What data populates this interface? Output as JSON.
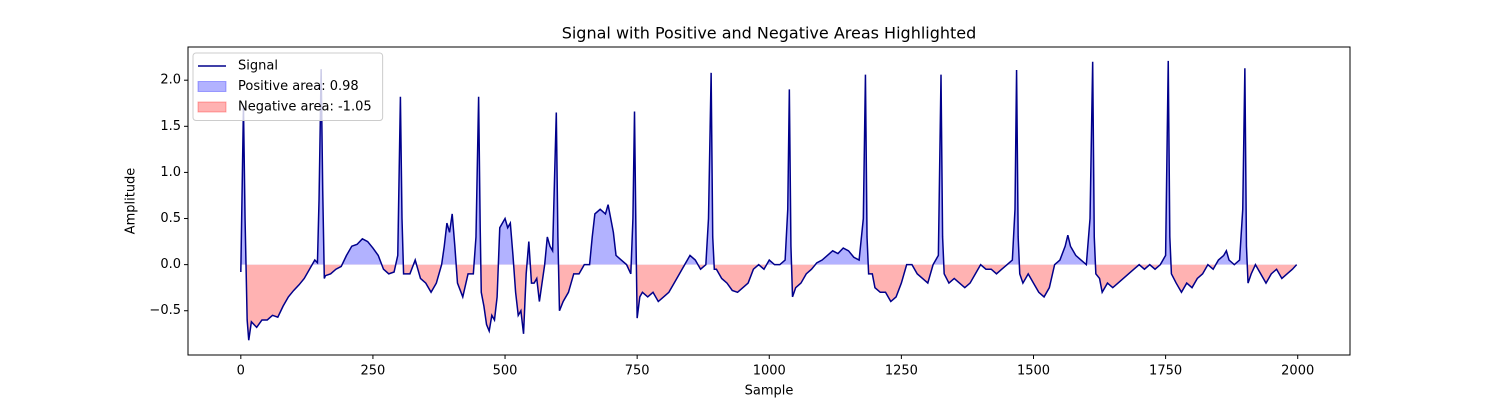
{
  "chart_data": {
    "type": "line",
    "title": "Signal with Positive and Negative Areas Highlighted",
    "x_label": "Sample",
    "y_label": "Amplitude",
    "x": [
      0,
      3,
      5,
      8,
      12,
      15,
      20,
      30,
      40,
      50,
      60,
      70,
      80,
      90,
      100,
      110,
      120,
      130,
      140,
      145,
      148,
      152,
      155,
      158,
      160,
      170,
      180,
      190,
      200,
      210,
      220,
      230,
      240,
      250,
      260,
      270,
      280,
      290,
      297,
      302,
      305,
      308,
      320,
      330,
      340,
      350,
      360,
      370,
      380,
      385,
      390,
      395,
      400,
      405,
      410,
      420,
      430,
      440,
      445,
      450,
      453,
      455,
      460,
      465,
      470,
      475,
      480,
      485,
      490,
      495,
      500,
      505,
      510,
      515,
      520,
      525,
      530,
      535,
      540,
      545,
      550,
      555,
      560,
      565,
      570,
      575,
      580,
      585,
      590,
      597,
      600,
      603,
      610,
      620,
      630,
      640,
      650,
      660,
      665,
      670,
      680,
      690,
      695,
      700,
      705,
      710,
      720,
      730,
      738,
      742,
      745,
      748,
      750,
      755,
      760,
      770,
      780,
      790,
      800,
      810,
      820,
      830,
      840,
      850,
      860,
      870,
      880,
      885,
      890,
      893,
      896,
      900,
      910,
      920,
      930,
      940,
      950,
      960,
      970,
      980,
      990,
      1000,
      1010,
      1020,
      1030,
      1035,
      1038,
      1041,
      1044,
      1050,
      1060,
      1070,
      1080,
      1090,
      1100,
      1110,
      1120,
      1130,
      1140,
      1150,
      1160,
      1170,
      1178,
      1182,
      1185,
      1188,
      1195,
      1200,
      1210,
      1220,
      1230,
      1240,
      1250,
      1260,
      1270,
      1280,
      1290,
      1300,
      1310,
      1320,
      1325,
      1328,
      1331,
      1340,
      1350,
      1360,
      1370,
      1380,
      1390,
      1400,
      1410,
      1420,
      1430,
      1440,
      1450,
      1460,
      1465,
      1468,
      1471,
      1474,
      1480,
      1490,
      1500,
      1510,
      1520,
      1530,
      1540,
      1550,
      1560,
      1565,
      1570,
      1580,
      1590,
      1600,
      1607,
      1612,
      1615,
      1618,
      1625,
      1630,
      1640,
      1650,
      1660,
      1670,
      1680,
      1690,
      1700,
      1710,
      1720,
      1730,
      1740,
      1750,
      1755,
      1758,
      1761,
      1770,
      1780,
      1790,
      1800,
      1810,
      1820,
      1830,
      1840,
      1850,
      1860,
      1865,
      1870,
      1880,
      1890,
      1896,
      1900,
      1903,
      1906,
      1912,
      1920,
      1930,
      1940,
      1950,
      1960,
      1970,
      1980,
      1990,
      1998
    ],
    "series": [
      {
        "name": "Signal",
        "color": "#00008b",
        "values": [
          -0.08,
          1.0,
          1.72,
          0.5,
          -0.6,
          -0.82,
          -0.62,
          -0.68,
          -0.6,
          -0.6,
          -0.55,
          -0.57,
          -0.45,
          -0.35,
          -0.28,
          -0.22,
          -0.15,
          -0.05,
          0.05,
          0.02,
          0.7,
          2.12,
          0.8,
          -0.15,
          -0.12,
          -0.1,
          -0.05,
          -0.02,
          0.1,
          0.2,
          0.22,
          0.28,
          0.25,
          0.18,
          0.1,
          -0.05,
          -0.1,
          -0.08,
          0.1,
          1.82,
          0.5,
          -0.1,
          -0.1,
          0.05,
          -0.15,
          -0.2,
          -0.3,
          -0.2,
          0.0,
          0.2,
          0.45,
          0.35,
          0.55,
          0.2,
          -0.2,
          -0.35,
          -0.1,
          -0.1,
          0.3,
          1.82,
          0.4,
          -0.3,
          -0.45,
          -0.65,
          -0.72,
          -0.55,
          -0.6,
          -0.35,
          0.4,
          0.45,
          0.5,
          0.4,
          0.45,
          0.1,
          -0.3,
          -0.55,
          -0.5,
          -0.75,
          -0.1,
          0.25,
          -0.2,
          -0.2,
          -0.15,
          -0.4,
          -0.2,
          0.0,
          0.3,
          0.2,
          0.15,
          1.65,
          0.3,
          -0.5,
          -0.4,
          -0.3,
          -0.1,
          -0.1,
          0.0,
          0.0,
          0.3,
          0.55,
          0.6,
          0.55,
          0.65,
          0.5,
          0.35,
          0.1,
          0.05,
          0.0,
          -0.1,
          0.5,
          1.66,
          0.2,
          -0.58,
          -0.35,
          -0.3,
          -0.35,
          -0.3,
          -0.4,
          -0.35,
          -0.3,
          -0.2,
          -0.1,
          0.0,
          0.1,
          0.05,
          -0.05,
          0.0,
          0.5,
          2.08,
          0.3,
          -0.05,
          -0.05,
          -0.15,
          -0.2,
          -0.28,
          -0.3,
          -0.25,
          -0.2,
          -0.05,
          0.0,
          -0.05,
          0.05,
          0.0,
          0.0,
          0.05,
          0.6,
          1.9,
          0.2,
          -0.35,
          -0.25,
          -0.2,
          -0.1,
          -0.05,
          0.02,
          0.05,
          0.1,
          0.15,
          0.12,
          0.18,
          0.15,
          0.08,
          0.05,
          0.5,
          2.06,
          0.3,
          -0.1,
          -0.1,
          -0.25,
          -0.3,
          -0.3,
          -0.4,
          -0.35,
          -0.2,
          0.0,
          0.0,
          -0.1,
          -0.15,
          -0.2,
          0.0,
          0.1,
          2.06,
          0.3,
          -0.1,
          -0.2,
          -0.15,
          -0.2,
          -0.25,
          -0.2,
          -0.1,
          0.0,
          -0.05,
          -0.05,
          -0.1,
          -0.05,
          0.0,
          0.05,
          0.6,
          2.11,
          0.3,
          -0.1,
          -0.2,
          -0.1,
          -0.2,
          -0.3,
          -0.35,
          -0.25,
          0.0,
          0.05,
          0.2,
          0.32,
          0.2,
          0.1,
          0.05,
          0.0,
          0.5,
          2.2,
          0.3,
          -0.1,
          -0.15,
          -0.3,
          -0.2,
          -0.25,
          -0.2,
          -0.15,
          -0.1,
          -0.05,
          0.0,
          -0.05,
          0.0,
          -0.05,
          0.0,
          0.1,
          2.21,
          0.3,
          -0.1,
          -0.2,
          -0.3,
          -0.2,
          -0.25,
          -0.15,
          -0.1,
          0.0,
          -0.05,
          0.05,
          0.1,
          0.15,
          0.05,
          0.0,
          0.05,
          0.6,
          2.13,
          0.2,
          -0.2,
          -0.1,
          0.0,
          -0.1,
          -0.2,
          -0.1,
          -0.05,
          -0.15,
          -0.1,
          -0.05,
          0.0
        ]
      }
    ],
    "areas": [
      {
        "name": "Positive area: 0.98",
        "color": "#0000ff",
        "side": "positive"
      },
      {
        "name": "Negative area: -1.05",
        "color": "#ff0000",
        "side": "negative"
      }
    ],
    "xlim": [
      -99.95,
      2098.95
    ],
    "ylim": [
      -0.98,
      2.36
    ],
    "xticks": [
      0,
      250,
      500,
      750,
      1000,
      1250,
      1500,
      1750,
      2000
    ],
    "yticks": [
      {
        "value": -0.5,
        "label": "−0.5"
      },
      {
        "value": 0,
        "label": "0.0"
      },
      0.5,
      {
        "value": 1,
        "label": "1.0"
      },
      1.5,
      {
        "value": 2,
        "label": "2.0"
      }
    ],
    "legend": "upper left"
  }
}
